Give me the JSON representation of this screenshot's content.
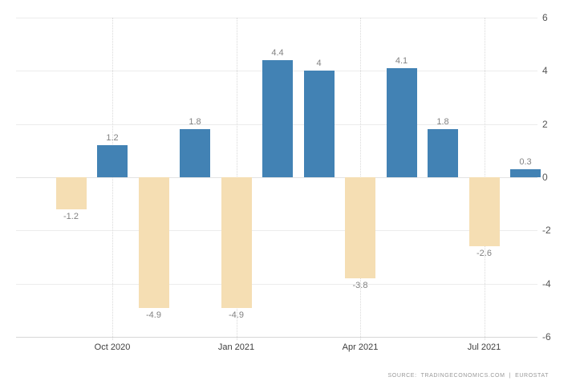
{
  "chart_data": {
    "type": "bar",
    "values": [
      -1.2,
      1.2,
      -4.9,
      1.8,
      -4.9,
      4.4,
      4,
      -3.8,
      4.1,
      1.8,
      -2.6,
      0.3
    ],
    "bar_labels": [
      "-1.2",
      "1.2",
      "-4.9",
      "1.8",
      "-4.9",
      "4.4",
      "4",
      "-3.8",
      "4.1",
      "1.8",
      "-2.6",
      "0.3"
    ],
    "x_tick_labels": [
      "Oct 2020",
      "Jan 2021",
      "Apr 2021",
      "Jul 2021"
    ],
    "x_tick_bar_indices": [
      1,
      4,
      7,
      10
    ],
    "y_ticks": [
      "6",
      "4",
      "2",
      "0",
      "-2",
      "-4",
      "-6"
    ],
    "ylim": [
      -6,
      6
    ],
    "legend": "none",
    "grid": {
      "horizontal": "solid",
      "vertical": "dotted at labeled ticks"
    },
    "colors": {
      "positive_bar": "#4282b4",
      "negative_bar": "#f5deb3",
      "gridline": "#ececec",
      "bar_label_text": "#828282",
      "axis_label_text": "#555555"
    },
    "source_text": "SOURCE:  TRADINGECONOMICS.COM  |  EUROSTAT"
  }
}
